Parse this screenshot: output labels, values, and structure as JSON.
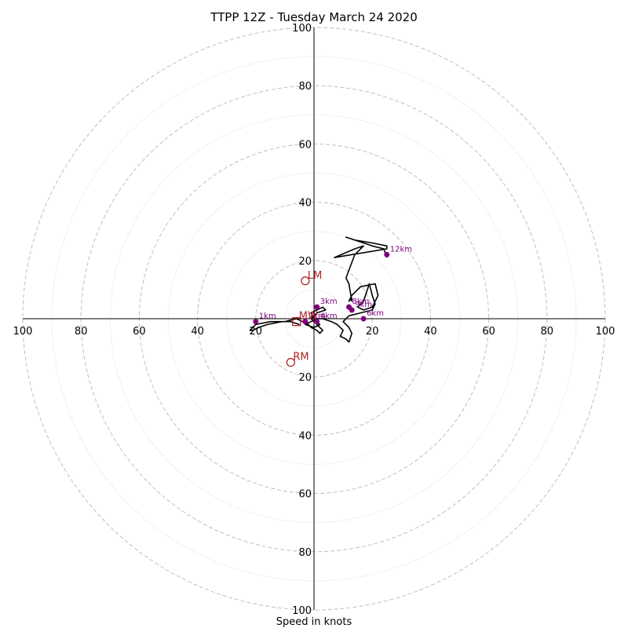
{
  "chart_data": {
    "type": "line",
    "title": "TTPP 12Z - Tuesday March 24 2020",
    "xlabel": "Speed in knots",
    "ylabel": "",
    "xlim": [
      -100,
      100
    ],
    "ylim": [
      -100,
      100
    ],
    "major_rings": [
      20,
      40,
      60,
      80,
      100
    ],
    "minor_rings": [
      10,
      30,
      50,
      70,
      90
    ],
    "x_tick_labels": [
      "100",
      "80",
      "60",
      "40",
      "20",
      "20",
      "40",
      "60",
      "80",
      "100"
    ],
    "x_tick_values": [
      -100,
      -80,
      -60,
      -40,
      -20,
      20,
      40,
      60,
      80,
      100
    ],
    "y_tick_labels": [
      "100",
      "80",
      "60",
      "40",
      "20",
      "20",
      "40",
      "60",
      "80",
      "100"
    ],
    "y_tick_values": [
      100,
      80,
      60,
      40,
      20,
      -20,
      -40,
      -60,
      -80,
      -100
    ],
    "grid": true,
    "hodograph": {
      "x": [
        -5,
        -8,
        -11,
        -16,
        -19,
        -21,
        -22,
        -20,
        -15,
        -10,
        -6,
        -4,
        -2,
        -1,
        1,
        2,
        3,
        1,
        0,
        -1,
        1,
        3,
        4,
        1,
        0,
        -1,
        0,
        2,
        0,
        -3,
        -1,
        1,
        3,
        6,
        8,
        10,
        9,
        11,
        12,
        13,
        12,
        10,
        12,
        16,
        20,
        21,
        20,
        19,
        17,
        15,
        17,
        20,
        22,
        21,
        16,
        13,
        12,
        13,
        13,
        12,
        11,
        14,
        17,
        14,
        7,
        25,
        25,
        20,
        14,
        11,
        14,
        17,
        20,
        24,
        25
      ],
      "y": [
        -2,
        -1,
        -1,
        -2,
        -3,
        -4,
        -4,
        -2,
        -1,
        -1,
        0,
        -1,
        -2,
        -3,
        -4,
        -5,
        -4,
        -2,
        0,
        2,
        3,
        4,
        3,
        2,
        1,
        0,
        -1,
        -2,
        -3,
        -2,
        -1,
        0,
        0,
        -1,
        -2,
        -4,
        -6,
        -7,
        -8,
        -5,
        -3,
        -1,
        1,
        2,
        3,
        5,
        8,
        12,
        6,
        4,
        3,
        4,
        8,
        12,
        11,
        8,
        6,
        7,
        6,
        12,
        14,
        22,
        25,
        24,
        21,
        24,
        25,
        26,
        27,
        28,
        27,
        26,
        25,
        24,
        21
      ]
    },
    "height_points": [
      {
        "label": "1km",
        "x": -20,
        "y": -1
      },
      {
        "label": "2km",
        "x": -3,
        "y": -1
      },
      {
        "label": "3km",
        "x": 1,
        "y": 4
      },
      {
        "label": "4km",
        "x": 1,
        "y": -1
      },
      {
        "label": "6km",
        "x": 17,
        "y": 0
      },
      {
        "label": "8km",
        "x": 12,
        "y": 4
      },
      {
        "label": "9km",
        "x": 13,
        "y": 3
      },
      {
        "label": "12km",
        "x": 25,
        "y": 22
      }
    ],
    "storm_motion": [
      {
        "label": "LM",
        "marker": "circle",
        "x": -3,
        "y": 13
      },
      {
        "label": "RM",
        "marker": "circle",
        "x": -8,
        "y": -15
      },
      {
        "label": "MW",
        "marker": "square",
        "x": -6,
        "y": -1
      }
    ],
    "colors": {
      "hodograph": "#000000",
      "height_points": "#800080",
      "storm_motion": "#b22222",
      "grid": "#bfbfbf"
    }
  }
}
